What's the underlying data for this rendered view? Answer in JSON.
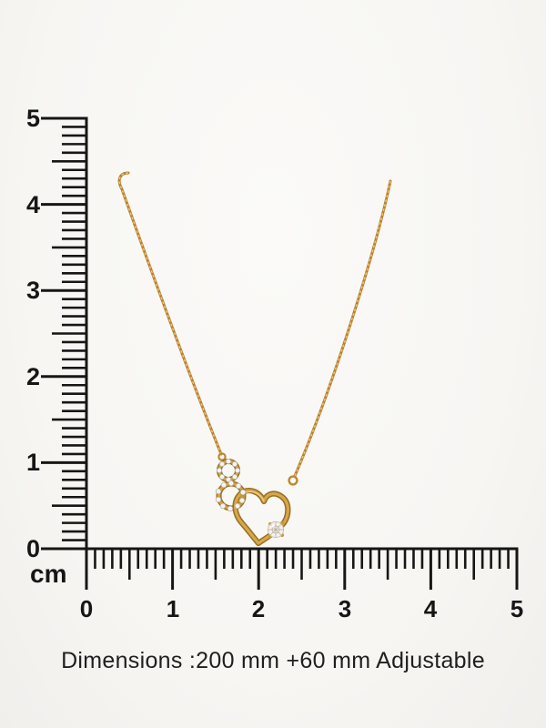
{
  "page": {
    "background": "#f7f6f3"
  },
  "ruler": {
    "color": "#161616",
    "unit_label": "cm",
    "vertical_labels": [
      "5",
      "4",
      "3",
      "2",
      "1",
      "0"
    ],
    "horizontal_labels": [
      "0",
      "1",
      "2",
      "3",
      "4",
      "5"
    ]
  },
  "necklace": {
    "gold_color": "#c08a35",
    "gold_highlight": "#dcae5c",
    "diamond_color": "#f4f2ed"
  },
  "caption": {
    "text": "Dimensions :200 mm +60 mm Adjustable"
  }
}
